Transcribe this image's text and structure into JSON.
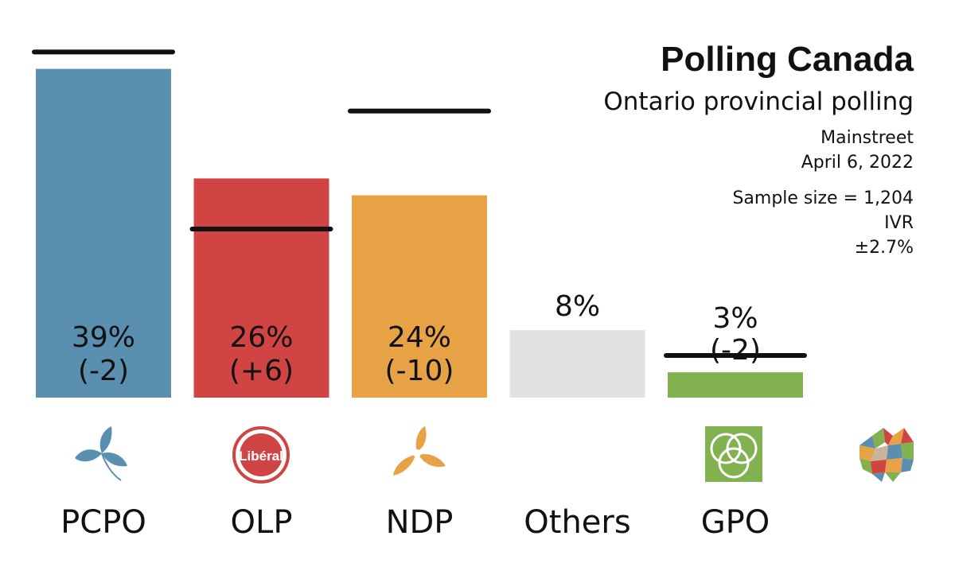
{
  "header": {
    "title": "Polling Canada",
    "subtitle": "Ontario provincial polling",
    "pollster": "Mainstreet",
    "date": "April 6, 2022",
    "sample": "Sample size = 1,204",
    "method": "IVR",
    "margin": "±2.7%"
  },
  "chart_data": {
    "type": "bar",
    "title": "Polling Canada",
    "subtitle": "Ontario provincial polling",
    "categories": [
      "PCPO",
      "OLP",
      "NDP",
      "Others",
      "GPO"
    ],
    "values": [
      39,
      26,
      24,
      8,
      3
    ],
    "changes": [
      "(-2)",
      "(+6)",
      "(-10)",
      "",
      "(-2)"
    ],
    "previous": [
      41,
      20,
      34,
      null,
      5
    ],
    "colors": [
      "#5b8fb0",
      "#d04444",
      "#e8a246",
      "#e2e2e2",
      "#82b14f"
    ],
    "ylim": [
      0,
      41
    ],
    "xlabel": "",
    "ylabel": "",
    "grid": false,
    "legend": "none"
  },
  "logos": {
    "pcpo": "trillium-icon",
    "olp": "liberal-logo",
    "liberal_text": "Libéral",
    "ndp": "trillium-orange-icon",
    "gpo": "green-trillium-icon",
    "polling_canada": "maple-leaf-mosaic-icon"
  }
}
